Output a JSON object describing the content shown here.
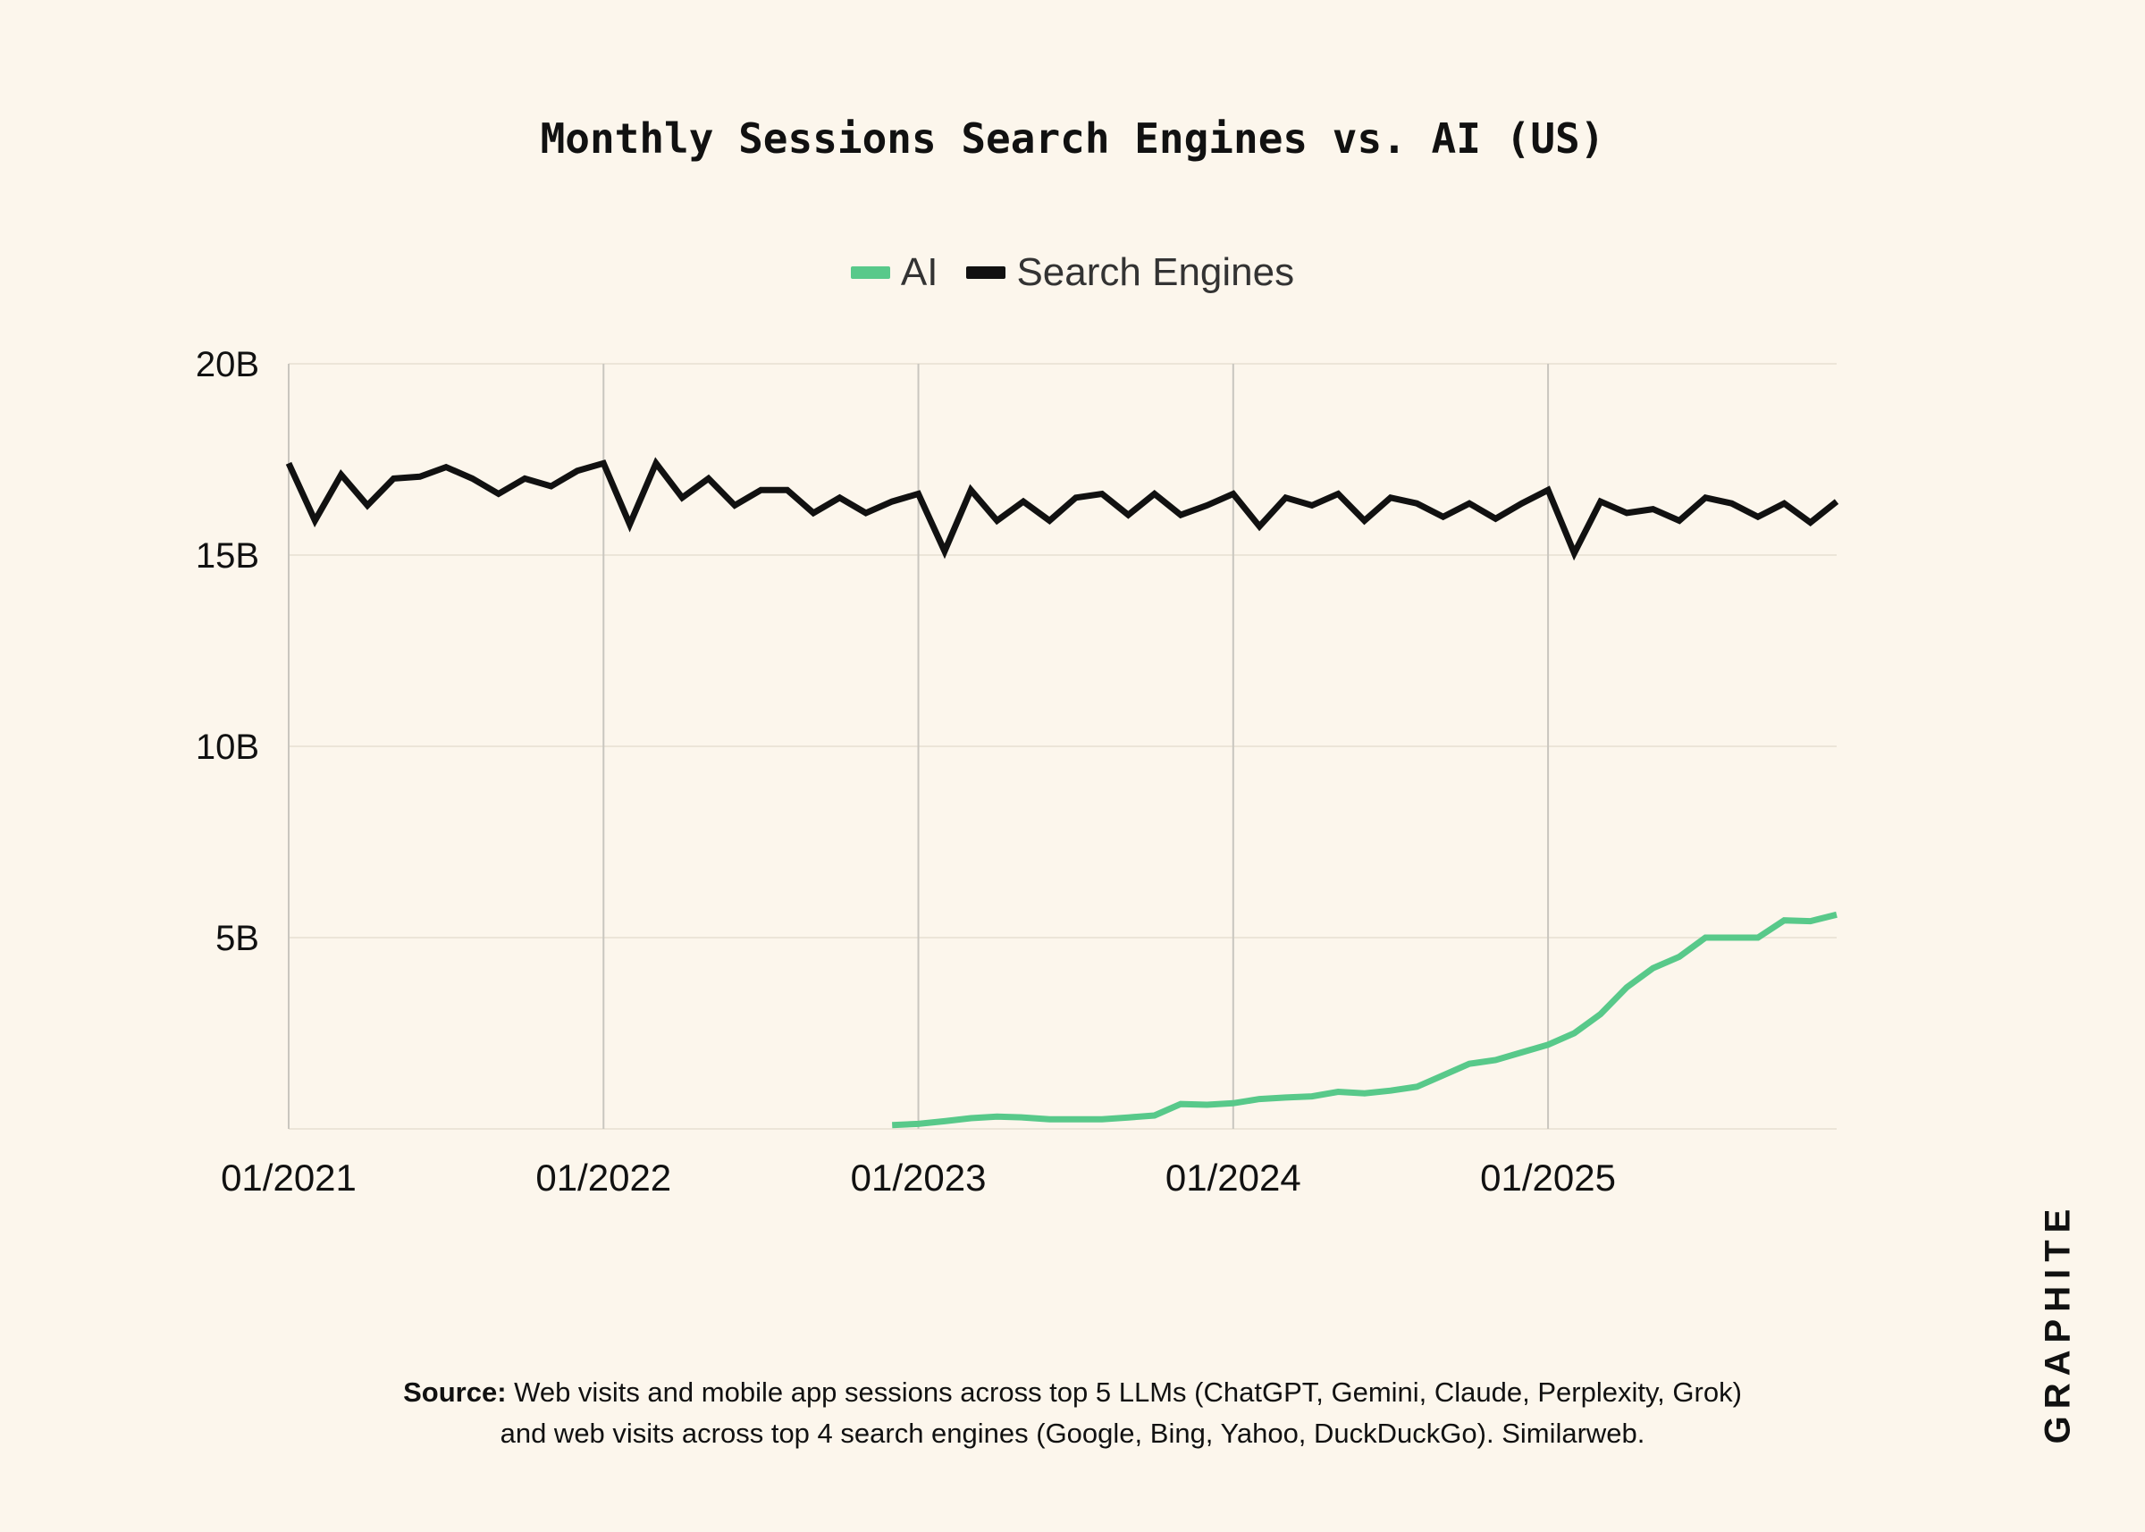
{
  "chart_data": {
    "type": "line",
    "title": "Monthly Sessions Search Engines vs. AI (US)",
    "ylim": [
      0,
      20
    ],
    "y_ticks": [
      {
        "value": 20,
        "label": "20B"
      },
      {
        "value": 15,
        "label": "15B"
      },
      {
        "value": 10,
        "label": "10B"
      },
      {
        "value": 5,
        "label": "5B"
      }
    ],
    "x_ticks": [
      {
        "index": 0,
        "label": "01/2021"
      },
      {
        "index": 12,
        "label": "01/2022"
      },
      {
        "index": 24,
        "label": "01/2023"
      },
      {
        "index": 36,
        "label": "01/2024"
      },
      {
        "index": 48,
        "label": "01/2025"
      }
    ],
    "x_range": [
      0,
      59
    ],
    "unit": "B",
    "grid": true,
    "legend_position": "top-center",
    "series": [
      {
        "name": "AI",
        "color": "#58c98a",
        "start_index": 23,
        "values": [
          0.1,
          0.13,
          0.2,
          0.28,
          0.32,
          0.3,
          0.25,
          0.25,
          0.25,
          0.3,
          0.35,
          0.65,
          0.63,
          0.67,
          0.78,
          0.82,
          0.85,
          0.97,
          0.93,
          1.0,
          1.1,
          1.4,
          1.7,
          1.8,
          2.0,
          2.2,
          2.5,
          3.0,
          3.7,
          4.2,
          4.5,
          5.0,
          5.0,
          5.0,
          5.45,
          5.43,
          5.6
        ]
      },
      {
        "name": "Search Engines",
        "color": "#111111",
        "start_index": 0,
        "values": [
          17.4,
          15.9,
          17.1,
          16.3,
          17.0,
          17.05,
          17.3,
          17.0,
          16.6,
          17.0,
          16.8,
          17.2,
          17.4,
          15.8,
          17.4,
          16.5,
          17.0,
          16.3,
          16.7,
          16.7,
          16.1,
          16.5,
          16.1,
          16.4,
          16.6,
          15.1,
          16.7,
          15.9,
          16.4,
          15.9,
          16.5,
          16.6,
          16.05,
          16.6,
          16.05,
          16.3,
          16.6,
          15.75,
          16.5,
          16.3,
          16.6,
          15.9,
          16.5,
          16.35,
          16.0,
          16.35,
          15.95,
          16.35,
          16.7,
          15.05,
          16.4,
          16.1,
          16.2,
          15.9,
          16.5,
          16.35,
          16.0,
          16.35,
          15.85,
          16.4
        ]
      }
    ]
  },
  "source": {
    "label": "Source:",
    "line1": "Web visits and mobile app sessions across top 5 LLMs (ChatGPT, Gemini, Claude, Perplexity, Grok)",
    "line2": "and web visits across top 4 search engines (Google, Bing, Yahoo, DuckDuckGo). Similarweb."
  },
  "brand": "GRAPHITE"
}
